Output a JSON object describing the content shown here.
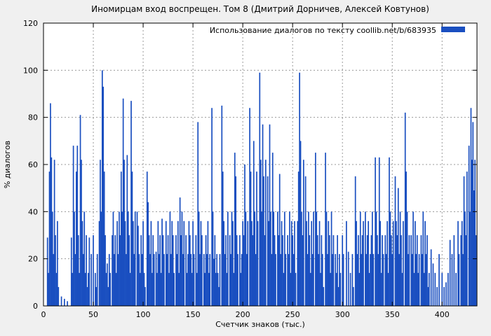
{
  "page": {
    "background": "#f0f0f0"
  },
  "chart_data": {
    "type": "bar",
    "title": "Иномирцам вход воспрещен. Том 8 (Дмитрий Дорничев, Алексей Ковтунов)",
    "legend": "Использование диалогов по тексту coollib.net/b/683935",
    "xlabel": "Счетчик знаков (тыс.)",
    "ylabel": "% диалогов",
    "xlim": [
      0,
      435
    ],
    "ylim": [
      0,
      120
    ],
    "xticks": [
      0,
      50,
      100,
      150,
      200,
      250,
      300,
      350,
      400
    ],
    "yticks": [
      0,
      20,
      40,
      60,
      80,
      100,
      120
    ],
    "grid": true,
    "legend_position": "top-right",
    "bar_color": "#1a4fc0",
    "points": [
      [
        4,
        29
      ],
      [
        5,
        14
      ],
      [
        6,
        57
      ],
      [
        7,
        86
      ],
      [
        8,
        63
      ],
      [
        9,
        40
      ],
      [
        10,
        22
      ],
      [
        11,
        62
      ],
      [
        12,
        30
      ],
      [
        13,
        14
      ],
      [
        14,
        36
      ],
      [
        15,
        8
      ],
      [
        18,
        4
      ],
      [
        21,
        3
      ],
      [
        24,
        2
      ],
      [
        28,
        29
      ],
      [
        29,
        14
      ],
      [
        30,
        68
      ],
      [
        31,
        40
      ],
      [
        32,
        22
      ],
      [
        33,
        57
      ],
      [
        34,
        68
      ],
      [
        35,
        30
      ],
      [
        36,
        14
      ],
      [
        37,
        81
      ],
      [
        38,
        62
      ],
      [
        39,
        36
      ],
      [
        40,
        22
      ],
      [
        41,
        40
      ],
      [
        42,
        14
      ],
      [
        43,
        30
      ],
      [
        44,
        8
      ],
      [
        45,
        14
      ],
      [
        46,
        29
      ],
      [
        48,
        22
      ],
      [
        50,
        30
      ],
      [
        52,
        14
      ],
      [
        53,
        8
      ],
      [
        54,
        22
      ],
      [
        56,
        36
      ],
      [
        57,
        62
      ],
      [
        58,
        40
      ],
      [
        59,
        100
      ],
      [
        60,
        93
      ],
      [
        61,
        57
      ],
      [
        62,
        30
      ],
      [
        63,
        14
      ],
      [
        64,
        18
      ],
      [
        65,
        8
      ],
      [
        66,
        22
      ],
      [
        67,
        14
      ],
      [
        69,
        30
      ],
      [
        70,
        40
      ],
      [
        71,
        22
      ],
      [
        72,
        30
      ],
      [
        73,
        14
      ],
      [
        74,
        36
      ],
      [
        75,
        22
      ],
      [
        76,
        40
      ],
      [
        77,
        30
      ],
      [
        78,
        57
      ],
      [
        79,
        40
      ],
      [
        80,
        88
      ],
      [
        81,
        62
      ],
      [
        82,
        36
      ],
      [
        83,
        22
      ],
      [
        84,
        64
      ],
      [
        85,
        40
      ],
      [
        86,
        30
      ],
      [
        87,
        14
      ],
      [
        88,
        87
      ],
      [
        89,
        57
      ],
      [
        90,
        36
      ],
      [
        91,
        22
      ],
      [
        92,
        40
      ],
      [
        94,
        40
      ],
      [
        95,
        34
      ],
      [
        96,
        22
      ],
      [
        97,
        14
      ],
      [
        98,
        30
      ],
      [
        99,
        22
      ],
      [
        100,
        36
      ],
      [
        101,
        14
      ],
      [
        102,
        8
      ],
      [
        104,
        57
      ],
      [
        105,
        44
      ],
      [
        106,
        30
      ],
      [
        107,
        22
      ],
      [
        108,
        36
      ],
      [
        109,
        14
      ],
      [
        110,
        30
      ],
      [
        111,
        22
      ],
      [
        113,
        23
      ],
      [
        114,
        14
      ],
      [
        115,
        36
      ],
      [
        116,
        22
      ],
      [
        117,
        30
      ],
      [
        118,
        14
      ],
      [
        119,
        37
      ],
      [
        120,
        30
      ],
      [
        121,
        22
      ],
      [
        123,
        36
      ],
      [
        124,
        22
      ],
      [
        125,
        30
      ],
      [
        126,
        14
      ],
      [
        127,
        40
      ],
      [
        128,
        22
      ],
      [
        129,
        36
      ],
      [
        130,
        30
      ],
      [
        131,
        14
      ],
      [
        133,
        30
      ],
      [
        134,
        22
      ],
      [
        135,
        36
      ],
      [
        136,
        14
      ],
      [
        137,
        46
      ],
      [
        138,
        30
      ],
      [
        139,
        40
      ],
      [
        140,
        22
      ],
      [
        141,
        36
      ],
      [
        143,
        30
      ],
      [
        144,
        14
      ],
      [
        145,
        22
      ],
      [
        146,
        36
      ],
      [
        147,
        30
      ],
      [
        148,
        22
      ],
      [
        149,
        14
      ],
      [
        150,
        36
      ],
      [
        151,
        22
      ],
      [
        153,
        30
      ],
      [
        154,
        14
      ],
      [
        155,
        78
      ],
      [
        156,
        40
      ],
      [
        157,
        22
      ],
      [
        158,
        36
      ],
      [
        159,
        30
      ],
      [
        161,
        22
      ],
      [
        162,
        14
      ],
      [
        163,
        30
      ],
      [
        164,
        22
      ],
      [
        165,
        36
      ],
      [
        166,
        14
      ],
      [
        167,
        22
      ],
      [
        169,
        84
      ],
      [
        170,
        40
      ],
      [
        171,
        20
      ],
      [
        172,
        30
      ],
      [
        173,
        14
      ],
      [
        174,
        22
      ],
      [
        175,
        14
      ],
      [
        176,
        8
      ],
      [
        177,
        22
      ],
      [
        179,
        85
      ],
      [
        180,
        57
      ],
      [
        181,
        36
      ],
      [
        182,
        22
      ],
      [
        183,
        30
      ],
      [
        184,
        14
      ],
      [
        185,
        40
      ],
      [
        187,
        30
      ],
      [
        188,
        22
      ],
      [
        189,
        40
      ],
      [
        190,
        36
      ],
      [
        191,
        14
      ],
      [
        192,
        65
      ],
      [
        193,
        55
      ],
      [
        194,
        30
      ],
      [
        195,
        22
      ],
      [
        197,
        30
      ],
      [
        198,
        14
      ],
      [
        199,
        22
      ],
      [
        200,
        36
      ],
      [
        201,
        30
      ],
      [
        202,
        60
      ],
      [
        203,
        40
      ],
      [
        204,
        22
      ],
      [
        205,
        36
      ],
      [
        207,
        84
      ],
      [
        208,
        57
      ],
      [
        209,
        36
      ],
      [
        210,
        30
      ],
      [
        211,
        70
      ],
      [
        212,
        40
      ],
      [
        213,
        22
      ],
      [
        214,
        57
      ],
      [
        215,
        36
      ],
      [
        217,
        99
      ],
      [
        218,
        62
      ],
      [
        219,
        40
      ],
      [
        220,
        77
      ],
      [
        221,
        55
      ],
      [
        222,
        30
      ],
      [
        223,
        62
      ],
      [
        225,
        55
      ],
      [
        226,
        36
      ],
      [
        227,
        77
      ],
      [
        228,
        40
      ],
      [
        229,
        22
      ],
      [
        230,
        65
      ],
      [
        231,
        40
      ],
      [
        232,
        30
      ],
      [
        233,
        22
      ],
      [
        235,
        40
      ],
      [
        236,
        30
      ],
      [
        237,
        56
      ],
      [
        238,
        22
      ],
      [
        239,
        36
      ],
      [
        240,
        30
      ],
      [
        241,
        14
      ],
      [
        242,
        40
      ],
      [
        243,
        22
      ],
      [
        245,
        30
      ],
      [
        246,
        22
      ],
      [
        247,
        40
      ],
      [
        248,
        14
      ],
      [
        249,
        36
      ],
      [
        250,
        30
      ],
      [
        251,
        22
      ],
      [
        252,
        36
      ],
      [
        253,
        14
      ],
      [
        255,
        36
      ],
      [
        256,
        57
      ],
      [
        257,
        99
      ],
      [
        258,
        70
      ],
      [
        259,
        40
      ],
      [
        260,
        30
      ],
      [
        261,
        62
      ],
      [
        263,
        55
      ],
      [
        264,
        36
      ],
      [
        265,
        22
      ],
      [
        266,
        40
      ],
      [
        267,
        30
      ],
      [
        268,
        14
      ],
      [
        269,
        36
      ],
      [
        270,
        22
      ],
      [
        271,
        40
      ],
      [
        273,
        65
      ],
      [
        274,
        40
      ],
      [
        275,
        30
      ],
      [
        276,
        22
      ],
      [
        277,
        36
      ],
      [
        278,
        14
      ],
      [
        279,
        30
      ],
      [
        280,
        22
      ],
      [
        281,
        8
      ],
      [
        283,
        65
      ],
      [
        284,
        40
      ],
      [
        285,
        22
      ],
      [
        286,
        36
      ],
      [
        287,
        30
      ],
      [
        288,
        14
      ],
      [
        289,
        40
      ],
      [
        290,
        22
      ],
      [
        291,
        30
      ],
      [
        293,
        22
      ],
      [
        294,
        14
      ],
      [
        295,
        30
      ],
      [
        296,
        8
      ],
      [
        297,
        22
      ],
      [
        298,
        14
      ],
      [
        300,
        30
      ],
      [
        301,
        22
      ],
      [
        304,
        36
      ],
      [
        306,
        23
      ],
      [
        308,
        14
      ],
      [
        310,
        22
      ],
      [
        311,
        8
      ],
      [
        313,
        55
      ],
      [
        314,
        36
      ],
      [
        315,
        22
      ],
      [
        316,
        30
      ],
      [
        317,
        14
      ],
      [
        318,
        40
      ],
      [
        319,
        22
      ],
      [
        320,
        30
      ],
      [
        321,
        36
      ],
      [
        323,
        40
      ],
      [
        324,
        22
      ],
      [
        325,
        30
      ],
      [
        326,
        36
      ],
      [
        327,
        14
      ],
      [
        328,
        22
      ],
      [
        329,
        30
      ],
      [
        330,
        40
      ],
      [
        331,
        22
      ],
      [
        333,
        63
      ],
      [
        334,
        40
      ],
      [
        335,
        30
      ],
      [
        336,
        22
      ],
      [
        337,
        63
      ],
      [
        338,
        36
      ],
      [
        339,
        14
      ],
      [
        340,
        30
      ],
      [
        341,
        22
      ],
      [
        343,
        30
      ],
      [
        344,
        22
      ],
      [
        345,
        36
      ],
      [
        346,
        14
      ],
      [
        347,
        63
      ],
      [
        348,
        40
      ],
      [
        349,
        30
      ],
      [
        350,
        22
      ],
      [
        351,
        36
      ],
      [
        353,
        55
      ],
      [
        354,
        36
      ],
      [
        355,
        30
      ],
      [
        356,
        50
      ],
      [
        357,
        22
      ],
      [
        358,
        40
      ],
      [
        359,
        30
      ],
      [
        360,
        14
      ],
      [
        361,
        36
      ],
      [
        363,
        82
      ],
      [
        364,
        57
      ],
      [
        365,
        40
      ],
      [
        366,
        22
      ],
      [
        367,
        30
      ],
      [
        369,
        30
      ],
      [
        370,
        22
      ],
      [
        371,
        40
      ],
      [
        372,
        14
      ],
      [
        373,
        36
      ],
      [
        374,
        22
      ],
      [
        375,
        30
      ],
      [
        376,
        14
      ],
      [
        377,
        22
      ],
      [
        379,
        30
      ],
      [
        380,
        22
      ],
      [
        381,
        40
      ],
      [
        382,
        14
      ],
      [
        383,
        36
      ],
      [
        384,
        22
      ],
      [
        385,
        30
      ],
      [
        386,
        8
      ],
      [
        387,
        14
      ],
      [
        389,
        24
      ],
      [
        391,
        18
      ],
      [
        393,
        14
      ],
      [
        395,
        8
      ],
      [
        397,
        22
      ],
      [
        400,
        14
      ],
      [
        402,
        8
      ],
      [
        404,
        10
      ],
      [
        406,
        14
      ],
      [
        408,
        28
      ],
      [
        410,
        22
      ],
      [
        412,
        30
      ],
      [
        414,
        14
      ],
      [
        416,
        36
      ],
      [
        417,
        22
      ],
      [
        419,
        30
      ],
      [
        420,
        36
      ],
      [
        421,
        22
      ],
      [
        422,
        55
      ],
      [
        423,
        40
      ],
      [
        424,
        30
      ],
      [
        425,
        57
      ],
      [
        427,
        68
      ],
      [
        428,
        40
      ],
      [
        429,
        84
      ],
      [
        430,
        62
      ],
      [
        431,
        78
      ],
      [
        432,
        49
      ],
      [
        433,
        62
      ],
      [
        434,
        30
      ]
    ]
  }
}
